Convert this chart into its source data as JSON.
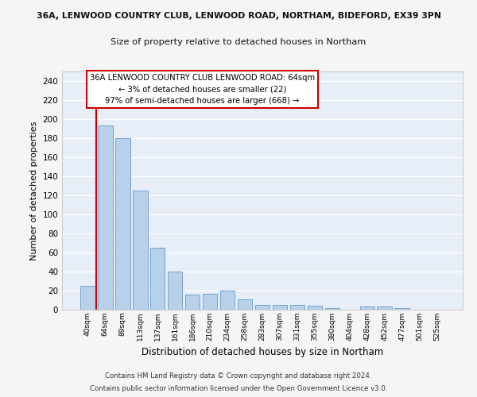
{
  "title_line1": "36A, LENWOOD COUNTRY CLUB, LENWOOD ROAD, NORTHAM, BIDEFORD, EX39 3PN",
  "title_line2": "Size of property relative to detached houses in Northam",
  "xlabel": "Distribution of detached houses by size in Northam",
  "ylabel": "Number of detached properties",
  "footnote_line1": "Contains HM Land Registry data © Crown copyright and database right 2024.",
  "footnote_line2": "Contains public sector information licensed under the Open Government Licence v3.0.",
  "annotation_title": "36A LENWOOD COUNTRY CLUB LENWOOD ROAD: 64sqm",
  "annotation_line2": "← 3% of detached houses are smaller (22)",
  "annotation_line3": "97% of semi-detached houses are larger (668) →",
  "bar_labels": [
    "40sqm",
    "64sqm",
    "89sqm",
    "113sqm",
    "137sqm",
    "161sqm",
    "186sqm",
    "210sqm",
    "234sqm",
    "258sqm",
    "283sqm",
    "307sqm",
    "331sqm",
    "355sqm",
    "380sqm",
    "404sqm",
    "428sqm",
    "452sqm",
    "477sqm",
    "501sqm",
    "525sqm"
  ],
  "bar_values": [
    25,
    193,
    180,
    125,
    65,
    40,
    16,
    17,
    20,
    11,
    5,
    5,
    5,
    4,
    2,
    0,
    3,
    3,
    2,
    0,
    0
  ],
  "highlight_index": 1,
  "bar_color": "#b8d0ea",
  "bar_edge_color": "#6699cc",
  "highlight_line_color": "#cc0000",
  "ylim": [
    0,
    250
  ],
  "yticks": [
    0,
    20,
    40,
    60,
    80,
    100,
    120,
    140,
    160,
    180,
    200,
    220,
    240
  ],
  "bg_color": "#e8eef8",
  "grid_color": "#ffffff",
  "fig_bg_color": "#f5f5f5",
  "annotation_box_facecolor": "#ffffff",
  "annotation_box_edgecolor": "#cc0000"
}
